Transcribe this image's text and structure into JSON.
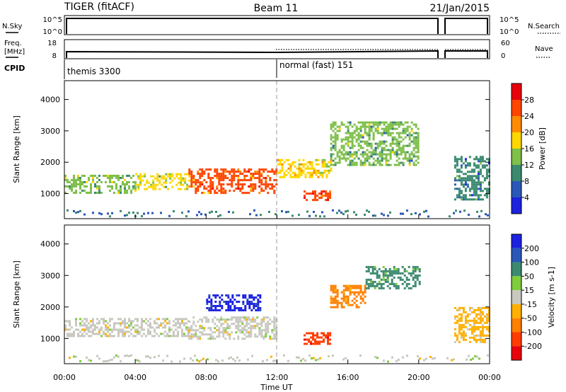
{
  "header": {
    "title_left": "TIGER (fitACF)",
    "title_center": "Beam 11",
    "title_right": "21/Jan/2015"
  },
  "top_strips": {
    "nsky_label": "N.Sky",
    "nsky_ticks": [
      "10^5",
      "10^0"
    ],
    "nsearch_label": "N.Search",
    "nsearch_ticks": [
      "10^5",
      "10^0"
    ],
    "freq_label": "Freq.",
    "freq_unit": "[MHz]",
    "freq_ticks": [
      "18",
      "8"
    ],
    "nave_label": "Nave",
    "nave_ticks": [
      "60",
      "0"
    ],
    "cpid_label": "CPID",
    "cpid_segments": [
      {
        "label": "themis 3300",
        "start_hour": 0
      },
      {
        "label": "normal (fast) 151",
        "start_hour": 12
      }
    ],
    "data_gap_hours": [
      21,
      21.5
    ]
  },
  "time_axis": {
    "label": "Time UT",
    "ticks": [
      "00:00",
      "04:00",
      "08:00",
      "12:00",
      "16:00",
      "20:00",
      "00:00"
    ],
    "tick_hours": [
      0,
      4,
      8,
      12,
      16,
      20,
      24
    ],
    "range_hours": [
      0,
      24
    ]
  },
  "chart_data": [
    {
      "type": "heatmap",
      "quantity": "power",
      "ylabel": "Slant Range [km]",
      "yticks": [
        1000,
        2000,
        3000,
        4000
      ],
      "ylim": [
        200,
        4600
      ],
      "colorbar_label": "Power [dB]",
      "colorbar_ticks": [
        4,
        8,
        12,
        16,
        20,
        24,
        28
      ],
      "colorbar_range": [
        0,
        32
      ],
      "colorbar_colors": [
        "#1c22e0",
        "#2a57b8",
        "#3b8a70",
        "#7fbf4a",
        "#ffd700",
        "#ff8c00",
        "#ff4500",
        "#e8000b"
      ],
      "echo_regions": [
        {
          "t": [
            0,
            4
          ],
          "range_km": [
            1050,
            1600
          ],
          "power_db": 14
        },
        {
          "t": [
            4,
            7
          ],
          "range_km": [
            1150,
            1650
          ],
          "power_db": 16
        },
        {
          "t": [
            7,
            12
          ],
          "range_km": [
            1000,
            1800
          ],
          "power_db": 24
        },
        {
          "t": [
            12,
            15
          ],
          "range_km": [
            1500,
            2100
          ],
          "power_db": 18
        },
        {
          "t": [
            13.5,
            15
          ],
          "range_km": [
            800,
            1100
          ],
          "power_db": 26
        },
        {
          "t": [
            15,
            20
          ],
          "range_km": [
            1900,
            3300
          ],
          "power_db": 12
        },
        {
          "t": [
            22,
            24
          ],
          "range_km": [
            800,
            2200
          ],
          "power_db": 8
        }
      ]
    },
    {
      "type": "heatmap",
      "quantity": "velocity",
      "ylabel": "Slant Range [km]",
      "yticks": [
        1000,
        2000,
        3000,
        4000
      ],
      "ylim": [
        200,
        4600
      ],
      "colorbar_label": "Velocity [m s-1]",
      "colorbar_ticks": [
        200,
        100,
        50,
        15,
        -15,
        -50,
        -100,
        -200
      ],
      "colorbar_colors": [
        "#1c22e0",
        "#2a57b8",
        "#3b8a70",
        "#7fcc3c",
        "#c8c8c0",
        "#ffb000",
        "#ff7f00",
        "#ff3c00",
        "#e8000b"
      ],
      "echo_regions": [
        {
          "t": [
            0,
            7
          ],
          "range_km": [
            1050,
            1650
          ],
          "velocity": 0
        },
        {
          "t": [
            7,
            12
          ],
          "range_km": [
            1000,
            1700
          ],
          "velocity": 0
        },
        {
          "t": [
            8,
            11
          ],
          "range_km": [
            1900,
            2400
          ],
          "velocity": 200
        },
        {
          "t": [
            13.5,
            15
          ],
          "range_km": [
            800,
            1200
          ],
          "velocity": -200
        },
        {
          "t": [
            15,
            17
          ],
          "range_km": [
            2000,
            2700
          ],
          "velocity": -60
        },
        {
          "t": [
            17,
            20
          ],
          "range_km": [
            2600,
            3300
          ],
          "velocity": 50
        },
        {
          "t": [
            22,
            24
          ],
          "range_km": [
            900,
            2000
          ],
          "velocity": -20
        }
      ]
    }
  ]
}
